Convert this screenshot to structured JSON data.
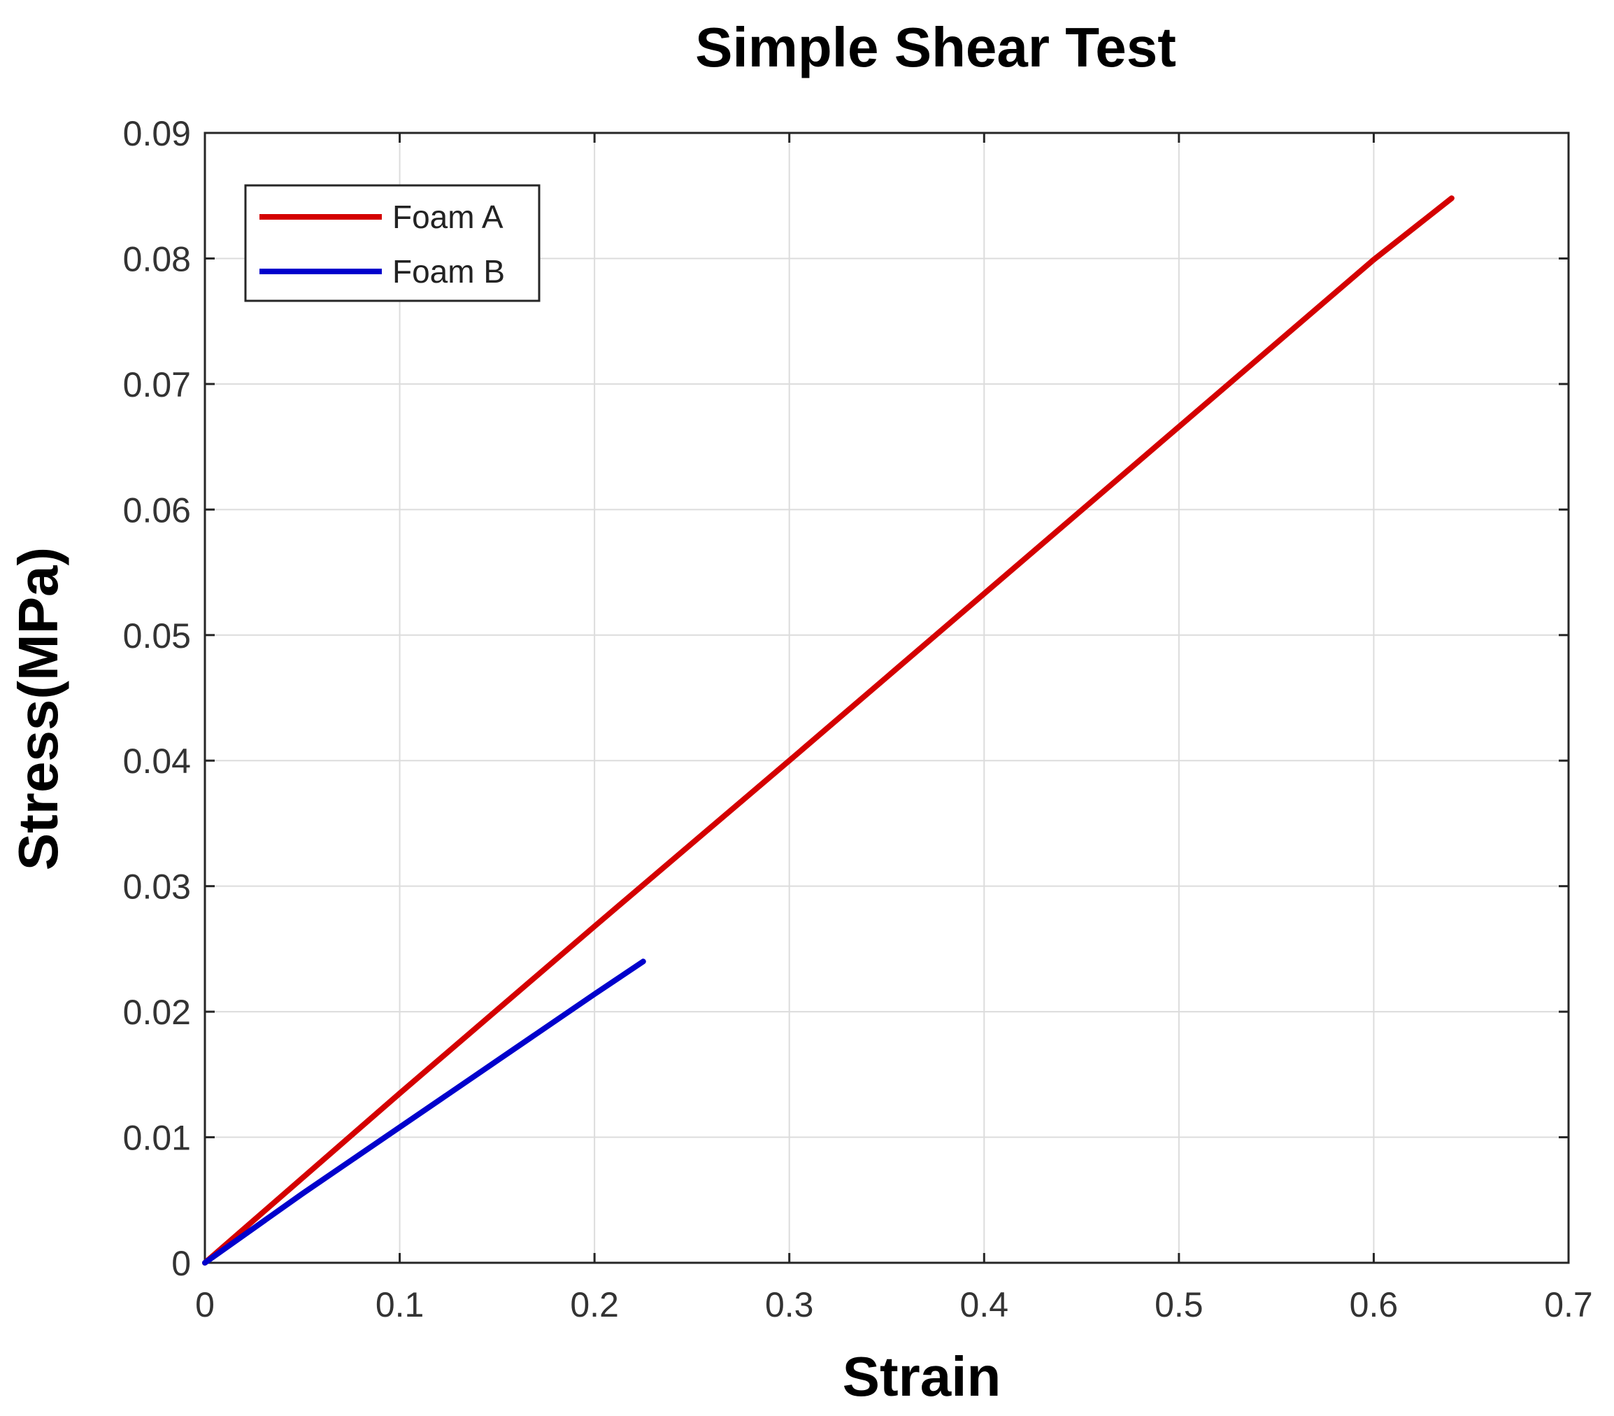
{
  "chart_data": {
    "type": "line",
    "title": "Simple Shear Test",
    "xlabel": "Strain",
    "ylabel": "Stress(MPa)",
    "xlim": [
      0,
      0.7
    ],
    "ylim": [
      0,
      0.09
    ],
    "xticks": [
      0,
      0.1,
      0.2,
      0.3,
      0.4,
      0.5,
      0.6,
      0.7
    ],
    "xtick_labels": [
      "0",
      "0.1",
      "0.2",
      "0.3",
      "0.4",
      "0.5",
      "0.6",
      "0.7"
    ],
    "yticks": [
      0,
      0.01,
      0.02,
      0.03,
      0.04,
      0.05,
      0.06,
      0.07,
      0.08,
      0.09
    ],
    "ytick_labels": [
      "0",
      "0.01",
      "0.02",
      "0.03",
      "0.04",
      "0.05",
      "0.06",
      "0.07",
      "0.08",
      "0.09"
    ],
    "grid": true,
    "legend_position": "top-left",
    "series": [
      {
        "name": "Foam A",
        "color": "#d40000",
        "x": [
          0,
          0.1,
          0.2,
          0.3,
          0.4,
          0.5,
          0.6,
          0.64
        ],
        "y": [
          0,
          0.0135,
          0.0268,
          0.04,
          0.0533,
          0.0666,
          0.0799,
          0.0848
        ]
      },
      {
        "name": "Foam B",
        "color": "#0000cc",
        "x": [
          0,
          0.05,
          0.1,
          0.15,
          0.2,
          0.225
        ],
        "y": [
          0,
          0.0055,
          0.0108,
          0.0161,
          0.0214,
          0.024
        ]
      }
    ]
  }
}
